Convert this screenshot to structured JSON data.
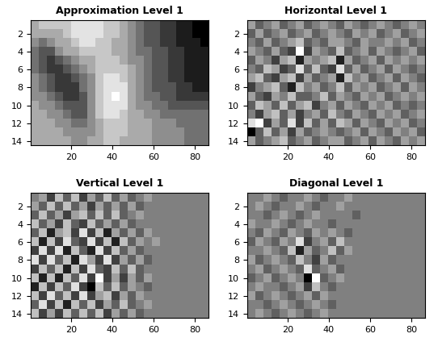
{
  "chart_data": [
    {
      "type": "heatmap",
      "title": "Approximation Level 1",
      "color": "gray",
      "xlim": [
        0.5,
        86.5
      ],
      "ylim": [
        14.5,
        0.5
      ],
      "xticks": [
        20,
        40,
        60,
        80
      ],
      "yticks": [
        2,
        4,
        6,
        8,
        10,
        12,
        14
      ],
      "cells": [
        [
          6,
          7,
          7,
          7,
          7,
          8,
          8,
          8,
          8,
          7,
          7,
          6,
          5,
          4,
          3,
          3,
          2,
          2,
          1,
          1,
          0,
          0
        ],
        [
          6,
          6,
          6,
          6,
          7,
          8,
          8,
          8,
          8,
          7,
          7,
          6,
          5,
          4,
          3,
          3,
          2,
          2,
          1,
          1,
          0,
          0
        ],
        [
          5,
          4,
          5,
          6,
          6,
          7,
          8,
          8,
          7,
          7,
          6,
          6,
          5,
          4,
          3,
          3,
          2,
          2,
          1,
          1,
          1,
          0
        ],
        [
          4,
          3,
          3,
          5,
          6,
          6,
          7,
          7,
          7,
          7,
          6,
          6,
          5,
          4,
          4,
          3,
          3,
          2,
          2,
          1,
          1,
          1
        ],
        [
          4,
          3,
          2,
          3,
          4,
          5,
          6,
          6,
          7,
          7,
          7,
          6,
          5,
          5,
          4,
          3,
          3,
          2,
          2,
          1,
          1,
          1
        ],
        [
          4,
          3,
          2,
          2,
          3,
          4,
          5,
          6,
          7,
          7,
          7,
          7,
          6,
          5,
          4,
          3,
          3,
          2,
          2,
          1,
          1,
          1
        ],
        [
          5,
          4,
          3,
          2,
          2,
          3,
          4,
          5,
          7,
          8,
          8,
          7,
          6,
          5,
          4,
          3,
          3,
          2,
          2,
          1,
          1,
          1
        ],
        [
          5,
          4,
          3,
          2,
          2,
          2,
          4,
          5,
          7,
          8,
          8,
          8,
          6,
          5,
          4,
          3,
          3,
          3,
          2,
          2,
          1,
          1
        ],
        [
          5,
          5,
          4,
          3,
          2,
          2,
          3,
          5,
          7,
          8,
          9,
          8,
          6,
          5,
          4,
          4,
          3,
          3,
          2,
          2,
          2,
          2
        ],
        [
          6,
          5,
          5,
          4,
          3,
          3,
          3,
          5,
          7,
          8,
          8,
          8,
          6,
          5,
          5,
          4,
          4,
          3,
          3,
          3,
          3,
          3
        ],
        [
          6,
          6,
          5,
          5,
          4,
          3,
          3,
          5,
          7,
          8,
          8,
          7,
          6,
          6,
          5,
          5,
          4,
          4,
          4,
          4,
          4,
          4
        ],
        [
          6,
          6,
          6,
          5,
          5,
          4,
          4,
          5,
          6,
          7,
          7,
          7,
          6,
          6,
          6,
          5,
          5,
          5,
          4,
          4,
          4,
          4
        ],
        [
          6,
          6,
          6,
          6,
          5,
          5,
          5,
          5,
          6,
          7,
          7,
          7,
          6,
          6,
          6,
          5,
          5,
          5,
          5,
          4,
          4,
          4
        ],
        [
          6,
          6,
          6,
          6,
          6,
          5,
          5,
          6,
          6,
          7,
          7,
          6,
          6,
          6,
          6,
          5,
          5,
          5,
          5,
          4,
          4,
          4
        ]
      ]
    },
    {
      "type": "heatmap",
      "title": "Horizontal Level 1",
      "color": "gray",
      "xlim": [
        0.5,
        86.5
      ],
      "ylim": [
        14.5,
        0.5
      ],
      "xticks": [
        20,
        40,
        60,
        80
      ],
      "yticks": [
        2,
        4,
        6,
        8,
        10,
        12,
        14
      ],
      "cells": [
        [
          1,
          -1,
          0,
          1,
          -1,
          0,
          1,
          -1,
          0,
          1,
          0,
          -1,
          1,
          0,
          -1,
          0,
          1,
          0,
          -1,
          0,
          1,
          0
        ],
        [
          -1,
          1,
          -1,
          0,
          1,
          -1,
          0,
          1,
          -1,
          0,
          1,
          0,
          -1,
          1,
          0,
          1,
          -1,
          0,
          1,
          -1,
          0,
          1
        ],
        [
          0,
          -1,
          1,
          -1,
          0,
          1,
          2,
          -1,
          0,
          -1,
          1,
          1,
          0,
          -1,
          1,
          0,
          0,
          1,
          0,
          1,
          -1,
          0
        ],
        [
          1,
          0,
          -1,
          1,
          -1,
          -2,
          4,
          -2,
          1,
          0,
          -1,
          2,
          -1,
          0,
          1,
          -1,
          1,
          0,
          -1,
          0,
          1,
          -1
        ],
        [
          -1,
          1,
          0,
          -2,
          1,
          2,
          -3,
          1,
          0,
          1,
          2,
          -3,
          1,
          -1,
          0,
          1,
          -1,
          1,
          0,
          1,
          0,
          1
        ],
        [
          0,
          -1,
          2,
          1,
          -2,
          -1,
          3,
          -1,
          2,
          -1,
          -2,
          3,
          -1,
          1,
          -1,
          0,
          1,
          -1,
          1,
          0,
          -1,
          0
        ],
        [
          1,
          2,
          -1,
          -2,
          1,
          2,
          -2,
          1,
          -1,
          0,
          1,
          -3,
          2,
          0,
          1,
          -1,
          0,
          1,
          -1,
          1,
          0,
          -1
        ],
        [
          -2,
          0,
          1,
          2,
          -1,
          -3,
          2,
          0,
          1,
          -1,
          0,
          2,
          -1,
          1,
          0,
          1,
          -1,
          0,
          1,
          -1,
          1,
          0
        ],
        [
          1,
          -1,
          -2,
          1,
          0,
          2,
          -1,
          -1,
          0,
          2,
          -1,
          1,
          0,
          -1,
          1,
          0,
          1,
          -1,
          0,
          1,
          0,
          1
        ],
        [
          -1,
          2,
          1,
          -1,
          2,
          -1,
          1,
          2,
          -2,
          0,
          1,
          -1,
          1,
          0,
          -1,
          1,
          0,
          1,
          -1,
          0,
          -1,
          0
        ],
        [
          0,
          -2,
          1,
          2,
          -1,
          1,
          -2,
          0,
          1,
          -1,
          2,
          0,
          -1,
          1,
          0,
          -1,
          1,
          0,
          1,
          -1,
          0,
          1
        ],
        [
          3,
          4,
          -2,
          1,
          -1,
          3,
          -2,
          2,
          -1,
          1,
          -1,
          2,
          1,
          -1,
          1,
          0,
          -1,
          1,
          0,
          1,
          -1,
          0
        ],
        [
          -4,
          -1,
          2,
          -1,
          1,
          -2,
          1,
          -1,
          0,
          1,
          0,
          -1,
          0,
          1,
          -1,
          1,
          0,
          -1,
          1,
          0,
          1,
          -1
        ],
        [
          1,
          -1,
          0,
          1,
          2,
          -1,
          0,
          1,
          -1,
          0,
          1,
          1,
          -1,
          0,
          1,
          -1,
          1,
          0,
          -1,
          1,
          0,
          1
        ]
      ]
    },
    {
      "type": "heatmap",
      "title": "Vertical Level 1",
      "color": "gray",
      "xlim": [
        0.5,
        86.5
      ],
      "ylim": [
        14.5,
        0.5
      ],
      "xticks": [
        20,
        40,
        60,
        80
      ],
      "yticks": [
        2,
        4,
        6,
        8,
        10,
        12,
        14
      ],
      "cells": [
        [
          0,
          1,
          -2,
          2,
          -1,
          2,
          -2,
          1,
          -1,
          2,
          -1,
          1,
          -1,
          0,
          1,
          0,
          0,
          0,
          0,
          0,
          0,
          0
        ],
        [
          1,
          -1,
          2,
          -1,
          2,
          -1,
          1,
          -2,
          1,
          -1,
          1,
          -1,
          1,
          -1,
          0,
          0,
          0,
          0,
          0,
          0,
          0,
          0
        ],
        [
          -1,
          2,
          -1,
          1,
          -2,
          1,
          2,
          -1,
          2,
          -1,
          2,
          -1,
          0,
          1,
          0,
          0,
          0,
          0,
          0,
          0,
          0,
          0
        ],
        [
          2,
          -1,
          1,
          -2,
          2,
          -1,
          -2,
          2,
          -1,
          1,
          -1,
          1,
          -1,
          0,
          0,
          0,
          0,
          0,
          0,
          0,
          0,
          0
        ],
        [
          -1,
          2,
          -3,
          1,
          2,
          -2,
          3,
          -2,
          2,
          -3,
          1,
          -1,
          1,
          -1,
          1,
          0,
          0,
          0,
          0,
          0,
          0,
          0
        ],
        [
          2,
          -3,
          2,
          -2,
          3,
          -1,
          -2,
          3,
          -2,
          2,
          -3,
          2,
          -1,
          1,
          0,
          1,
          0,
          0,
          0,
          0,
          0,
          0
        ],
        [
          -2,
          3,
          -2,
          3,
          -3,
          2,
          -1,
          -3,
          3,
          -2,
          2,
          -1,
          1,
          -1,
          0,
          0,
          0,
          0,
          0,
          0,
          0,
          0
        ],
        [
          3,
          -2,
          3,
          -1,
          2,
          -3,
          3,
          1,
          -2,
          3,
          -2,
          1,
          -1,
          1,
          -1,
          0,
          0,
          0,
          0,
          0,
          0,
          0
        ],
        [
          -2,
          2,
          -1,
          2,
          -3,
          2,
          -2,
          3,
          -1,
          -2,
          2,
          -1,
          2,
          -1,
          0,
          0,
          0,
          0,
          0,
          0,
          0,
          0
        ],
        [
          2,
          -3,
          2,
          -3,
          2,
          -1,
          3,
          -2,
          4,
          -2,
          1,
          -2,
          1,
          -1,
          1,
          0,
          0,
          0,
          0,
          0,
          0,
          0
        ],
        [
          -3,
          2,
          -2,
          2,
          -1,
          3,
          -2,
          -4,
          2,
          -1,
          2,
          -1,
          1,
          0,
          -1,
          0,
          0,
          0,
          0,
          0,
          0,
          0
        ],
        [
          2,
          -2,
          3,
          -1,
          2,
          -2,
          3,
          -2,
          1,
          2,
          -2,
          1,
          -1,
          1,
          0,
          0,
          0,
          0,
          0,
          0,
          0,
          0
        ],
        [
          -1,
          3,
          -2,
          2,
          -3,
          2,
          -1,
          2,
          -2,
          1,
          -1,
          2,
          -1,
          0,
          1,
          0,
          0,
          0,
          0,
          0,
          0,
          0
        ],
        [
          2,
          -2,
          1,
          -2,
          2,
          -1,
          2,
          -1,
          2,
          -2,
          1,
          -1,
          1,
          -1,
          0,
          0,
          0,
          0,
          0,
          0,
          0,
          0
        ]
      ]
    },
    {
      "type": "heatmap",
      "title": "Diagonal Level 1",
      "color": "gray",
      "xlim": [
        0.5,
        86.5
      ],
      "ylim": [
        14.5,
        0.5
      ],
      "xticks": [
        20,
        40,
        60,
        80
      ],
      "yticks": [
        2,
        4,
        6,
        8,
        10,
        12,
        14
      ],
      "cells": [
        [
          0,
          0,
          1,
          0,
          -1,
          0,
          0,
          1,
          0,
          -1,
          0,
          0,
          1,
          0,
          0,
          0,
          0,
          0,
          0,
          0,
          0,
          0
        ],
        [
          0,
          1,
          0,
          -1,
          0,
          0,
          1,
          0,
          -1,
          0,
          0,
          1,
          0,
          0,
          0,
          0,
          0,
          0,
          0,
          0,
          0,
          0
        ],
        [
          0,
          0,
          -1,
          0,
          1,
          0,
          -1,
          0,
          1,
          0,
          0,
          0,
          0,
          -1,
          0,
          0,
          0,
          0,
          0,
          0,
          0,
          0
        ],
        [
          1,
          0,
          0,
          1,
          0,
          -1,
          0,
          1,
          0,
          0,
          -1,
          0,
          0,
          0,
          0,
          0,
          0,
          0,
          0,
          0,
          0,
          0
        ],
        [
          0,
          -1,
          1,
          0,
          -1,
          1,
          0,
          -1,
          1,
          0,
          1,
          0,
          -1,
          0,
          0,
          0,
          0,
          0,
          0,
          0,
          0,
          0
        ],
        [
          -1,
          1,
          0,
          -1,
          1,
          0,
          3,
          -2,
          0,
          1,
          -1,
          2,
          0,
          0,
          0,
          0,
          0,
          0,
          0,
          0,
          0,
          0
        ],
        [
          0,
          0,
          1,
          0,
          -1,
          2,
          -3,
          1,
          -1,
          0,
          2,
          -1,
          1,
          0,
          0,
          0,
          0,
          0,
          0,
          0,
          0,
          0
        ],
        [
          1,
          -1,
          0,
          1,
          0,
          -1,
          2,
          0,
          -2,
          1,
          -1,
          0,
          0,
          0,
          0,
          0,
          0,
          0,
          0,
          0,
          0,
          0
        ],
        [
          0,
          1,
          -1,
          0,
          1,
          0,
          -1,
          3,
          -1,
          0,
          1,
          -1,
          0,
          0,
          0,
          0,
          0,
          0,
          0,
          0,
          0,
          0
        ],
        [
          -1,
          0,
          1,
          -1,
          0,
          1,
          0,
          -4,
          4,
          -1,
          0,
          1,
          0,
          0,
          0,
          0,
          0,
          0,
          0,
          0,
          0,
          0
        ],
        [
          0,
          1,
          0,
          0,
          -1,
          0,
          1,
          -2,
          2,
          0,
          -1,
          0,
          0,
          0,
          0,
          0,
          0,
          0,
          0,
          0,
          0,
          0
        ],
        [
          1,
          -1,
          0,
          1,
          0,
          -1,
          0,
          1,
          -1,
          1,
          0,
          0,
          0,
          0,
          0,
          0,
          0,
          0,
          0,
          0,
          0,
          0
        ],
        [
          0,
          0,
          -1,
          0,
          1,
          0,
          -1,
          0,
          1,
          0,
          -1,
          0,
          0,
          0,
          0,
          0,
          0,
          0,
          0,
          0,
          0,
          0
        ],
        [
          0,
          1,
          0,
          -1,
          0,
          1,
          0,
          -1,
          0,
          1,
          0,
          0,
          0,
          0,
          0,
          0,
          0,
          0,
          0,
          0,
          0,
          0
        ]
      ]
    }
  ]
}
